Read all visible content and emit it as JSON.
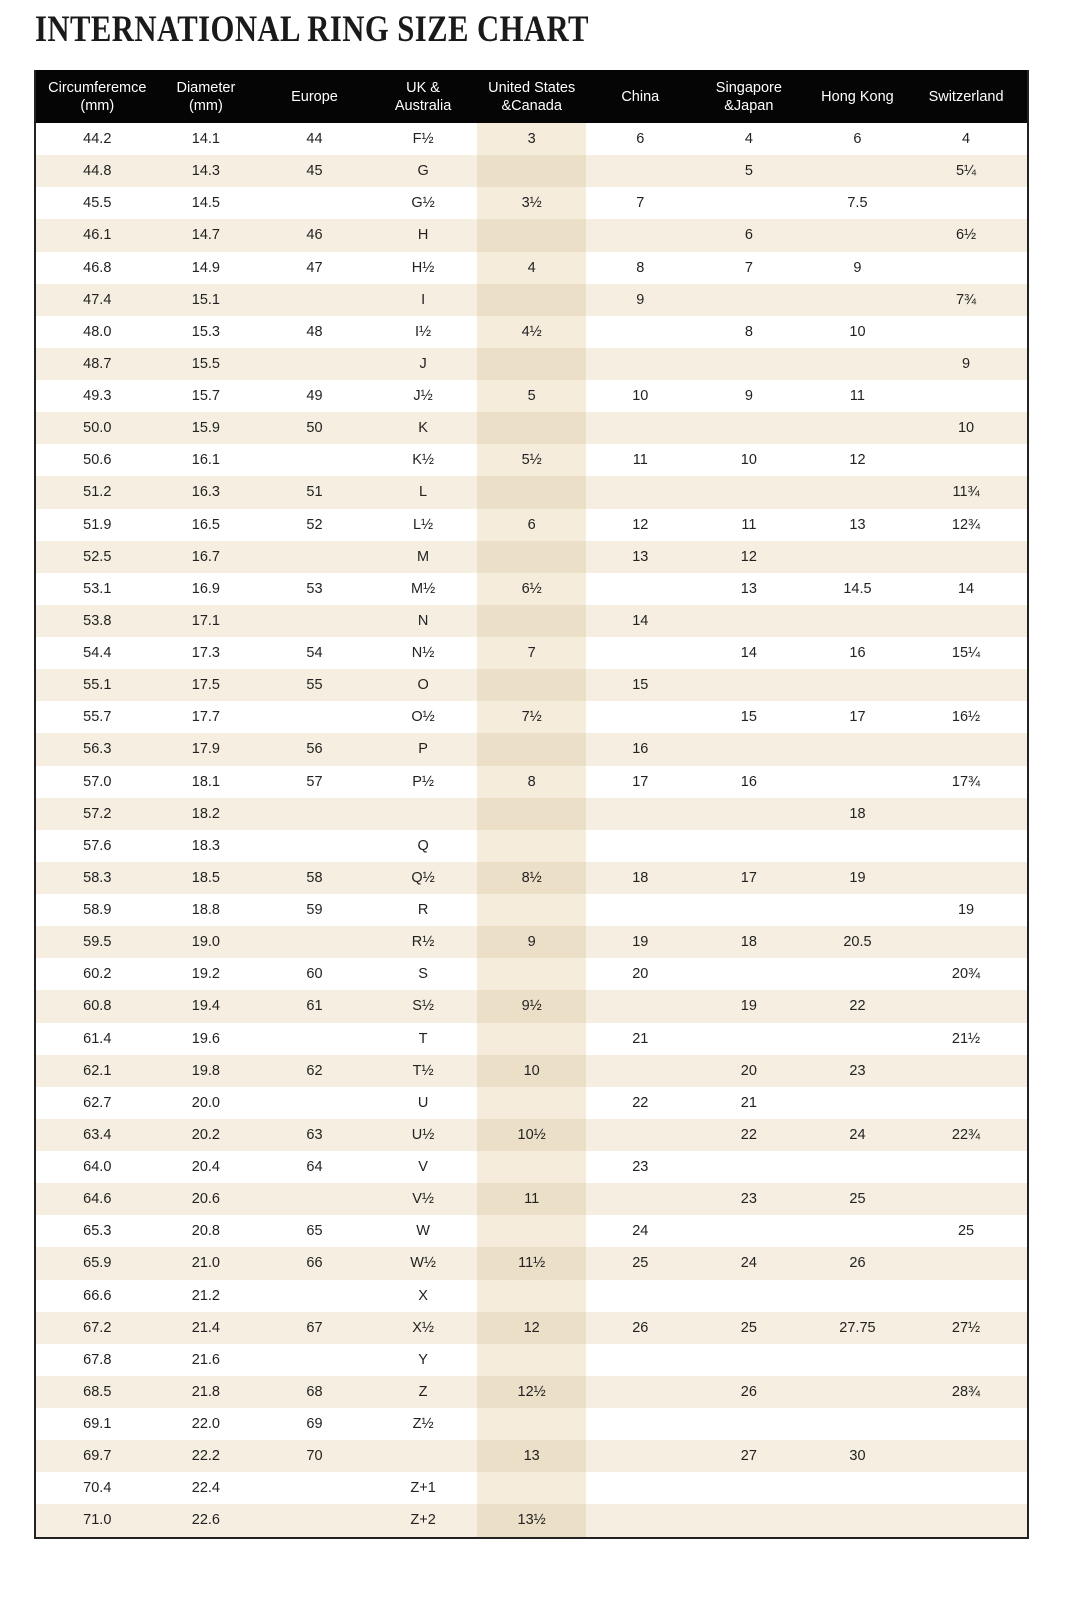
{
  "title": "INTERNATIONAL RING SIZE CHART",
  "colors": {
    "header_bg": "#050505",
    "stripe": "#f6efe1",
    "us_column": "#f5ecdc"
  },
  "headers": [
    "Circumferemce\n(mm)",
    "Diameter\n(mm)",
    "Europe",
    "UK &\nAustralia",
    "United States\n&Canada",
    "China",
    "Singapore\n&Japan",
    "Hong Kong",
    "Switzerland"
  ],
  "rows": [
    [
      "44.2",
      "14.1",
      "44",
      "F½",
      "3",
      "6",
      "4",
      "6",
      "4"
    ],
    [
      "44.8",
      "14.3",
      "45",
      "G",
      "",
      "",
      "5",
      "",
      "5¼"
    ],
    [
      "45.5",
      "14.5",
      "",
      "G½",
      "3½",
      "7",
      "",
      "7.5",
      ""
    ],
    [
      "46.1",
      "14.7",
      "46",
      "H",
      "",
      "",
      "6",
      "",
      "6½"
    ],
    [
      "46.8",
      "14.9",
      "47",
      "H½",
      "4",
      "8",
      "7",
      "9",
      ""
    ],
    [
      "47.4",
      "15.1",
      "",
      "I",
      "",
      "9",
      "",
      "",
      "7¾"
    ],
    [
      "48.0",
      "15.3",
      "48",
      "I½",
      "4½",
      "",
      "8",
      "10",
      ""
    ],
    [
      "48.7",
      "15.5",
      "",
      "J",
      "",
      "",
      "",
      "",
      "9"
    ],
    [
      "49.3",
      "15.7",
      "49",
      "J½",
      "5",
      "10",
      "9",
      "11",
      ""
    ],
    [
      "50.0",
      "15.9",
      "50",
      "K",
      "",
      "",
      "",
      "",
      "10"
    ],
    [
      "50.6",
      "16.1",
      "",
      "K½",
      "5½",
      "11",
      "10",
      "12",
      ""
    ],
    [
      "51.2",
      "16.3",
      "51",
      "L",
      "",
      "",
      "",
      "",
      "11¾"
    ],
    [
      "51.9",
      "16.5",
      "52",
      "L½",
      "6",
      "12",
      "11",
      "13",
      "12¾"
    ],
    [
      "52.5",
      "16.7",
      "",
      "M",
      "",
      "13",
      "12",
      "",
      ""
    ],
    [
      "53.1",
      "16.9",
      "53",
      "M½",
      "6½",
      "",
      "13",
      "14.5",
      "14"
    ],
    [
      "53.8",
      "17.1",
      "",
      "N",
      "",
      "14",
      "",
      "",
      ""
    ],
    [
      "54.4",
      "17.3",
      "54",
      "N½",
      "7",
      "",
      "14",
      "16",
      "15¼"
    ],
    [
      "55.1",
      "17.5",
      "55",
      "O",
      "",
      "15",
      "",
      "",
      ""
    ],
    [
      "55.7",
      "17.7",
      "",
      "O½",
      "7½",
      "",
      "15",
      "17",
      "16½"
    ],
    [
      "56.3",
      "17.9",
      "56",
      "P",
      "",
      "16",
      "",
      "",
      ""
    ],
    [
      "57.0",
      "18.1",
      "57",
      "P½",
      "8",
      "17",
      "16",
      "",
      "17¾"
    ],
    [
      "57.2",
      "18.2",
      "",
      "",
      "",
      "",
      "",
      "18",
      ""
    ],
    [
      "57.6",
      "18.3",
      "",
      "Q",
      "",
      "",
      "",
      "",
      ""
    ],
    [
      "58.3",
      "18.5",
      "58",
      "Q½",
      "8½",
      "18",
      "17",
      "19",
      ""
    ],
    [
      "58.9",
      "18.8",
      "59",
      "R",
      "",
      "",
      "",
      "",
      "19"
    ],
    [
      "59.5",
      "19.0",
      "",
      "R½",
      "9",
      "19",
      "18",
      "20.5",
      ""
    ],
    [
      "60.2",
      "19.2",
      "60",
      "S",
      "",
      "20",
      "",
      "",
      "20¾"
    ],
    [
      "60.8",
      "19.4",
      "61",
      "S½",
      "9½",
      "",
      "19",
      "22",
      ""
    ],
    [
      "61.4",
      "19.6",
      "",
      "T",
      "",
      "21",
      "",
      "",
      "21½"
    ],
    [
      "62.1",
      "19.8",
      "62",
      "T½",
      "10",
      "",
      "20",
      "23",
      ""
    ],
    [
      "62.7",
      "20.0",
      "",
      "U",
      "",
      "22",
      "21",
      "",
      ""
    ],
    [
      "63.4",
      "20.2",
      "63",
      "U½",
      "10½",
      "",
      "22",
      "24",
      "22¾"
    ],
    [
      "64.0",
      "20.4",
      "64",
      "V",
      "",
      "23",
      "",
      "",
      ""
    ],
    [
      "64.6",
      "20.6",
      "",
      "V½",
      "11",
      "",
      "23",
      "25",
      ""
    ],
    [
      "65.3",
      "20.8",
      "65",
      "W",
      "",
      "24",
      "",
      "",
      "25"
    ],
    [
      "65.9",
      "21.0",
      "66",
      "W½",
      "11½",
      "25",
      "24",
      "26",
      ""
    ],
    [
      "66.6",
      "21.2",
      "",
      "X",
      "",
      "",
      "",
      "",
      ""
    ],
    [
      "67.2",
      "21.4",
      "67",
      "X½",
      "12",
      "26",
      "25",
      "27.75",
      "27½"
    ],
    [
      "67.8",
      "21.6",
      "",
      "Y",
      "",
      "",
      "",
      "",
      ""
    ],
    [
      "68.5",
      "21.8",
      "68",
      "Z",
      "12½",
      "",
      "26",
      "",
      "28¾"
    ],
    [
      "69.1",
      "22.0",
      "69",
      "Z½",
      "",
      "",
      "",
      "",
      ""
    ],
    [
      "69.7",
      "22.2",
      "70",
      "",
      "13",
      "",
      "27",
      "30",
      ""
    ],
    [
      "70.4",
      "22.4",
      "",
      "Z+1",
      "",
      "",
      "",
      "",
      ""
    ],
    [
      "71.0",
      "22.6",
      "",
      "Z+2",
      "13½",
      "",
      "",
      "",
      ""
    ]
  ]
}
